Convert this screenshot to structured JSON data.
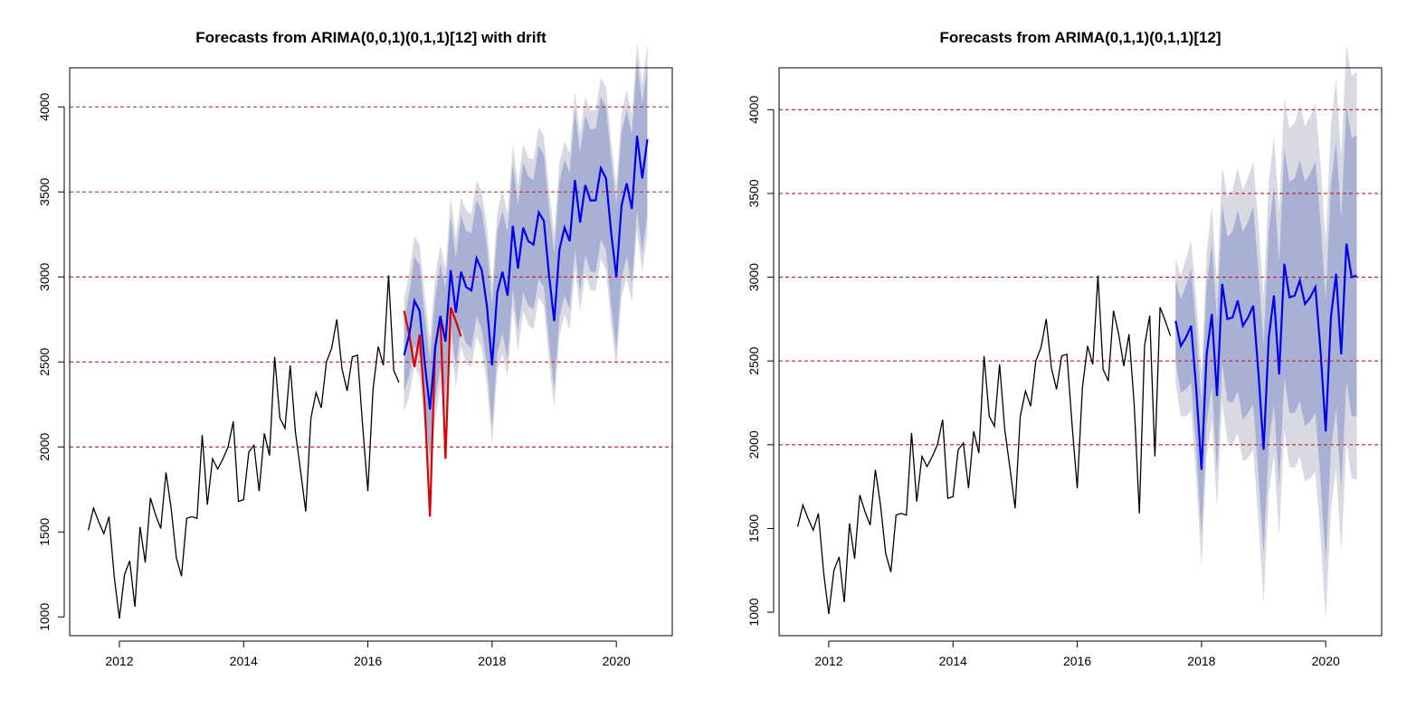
{
  "chart_data": [
    {
      "type": "line",
      "title": "Forecasts from ARIMA(0,0,1)(0,1,1)[12] with drift",
      "xlabel": "",
      "ylabel": "",
      "xlim": [
        2011.2,
        2020.9
      ],
      "ylim": [
        890,
        4230
      ],
      "x_ticks": [
        2012,
        2014,
        2016,
        2018,
        2020
      ],
      "y_ticks": [
        1000,
        1500,
        2000,
        2500,
        3000,
        3500,
        4000
      ],
      "reference_lines": [
        2000,
        2500,
        3000,
        3500,
        4000
      ],
      "grid": false,
      "colors": {
        "observed": "#000000",
        "forecast": "#0000ee",
        "actual": "#dd0000",
        "band80": "#a8b0d4",
        "band95": "#d8d9e2",
        "reference": "#b22222"
      },
      "observed": {
        "name": "observed",
        "x_start": 2011.5,
        "step": 0.08333,
        "values": [
          1510,
          1640,
          1560,
          1490,
          1590,
          1240,
          990,
          1250,
          1330,
          1060,
          1530,
          1320,
          1700,
          1600,
          1520,
          1850,
          1640,
          1350,
          1240,
          1580,
          1590,
          1580,
          2070,
          1660,
          1930,
          1870,
          1930,
          2000,
          2150,
          1680,
          1690,
          1970,
          2010,
          1740,
          2080,
          1950,
          2530,
          2170,
          2110,
          2480,
          2090,
          1860,
          1620,
          2170,
          2320,
          2230,
          2500,
          2580,
          2750,
          2460,
          2330,
          2530,
          2540,
          2120,
          1740,
          2340,
          2590,
          2480,
          3010,
          2450,
          2380
        ]
      },
      "actual": {
        "name": "actual",
        "x_start": 2016.583,
        "step": 0.08333,
        "values": [
          2800,
          2660,
          2470,
          2660,
          2240,
          1590,
          2590,
          2770,
          1930,
          2820,
          2740,
          2650
        ]
      },
      "forecast": {
        "name": "forecast",
        "x_start": 2016.583,
        "step": 0.08333,
        "values": [
          2540,
          2660,
          2860,
          2800,
          2490,
          2220,
          2580,
          2770,
          2620,
          3040,
          2790,
          3030,
          2940,
          2920,
          3110,
          3040,
          2830,
          2480,
          2910,
          3030,
          2890,
          3300,
          3050,
          3290,
          3210,
          3190,
          3380,
          3330,
          3010,
          2740,
          3160,
          3290,
          3210,
          3570,
          3320,
          3540,
          3450,
          3450,
          3640,
          3580,
          3260,
          3000,
          3420,
          3550,
          3400,
          3830,
          3580,
          3810
        ]
      },
      "hw80": [
        210,
        240,
        260,
        270,
        280,
        290,
        300,
        310,
        310,
        320,
        320,
        330,
        330,
        340,
        340,
        350,
        350,
        360,
        360,
        360,
        370,
        370,
        370,
        380,
        380,
        380,
        390,
        390,
        390,
        400,
        400,
        400,
        400,
        410,
        410,
        410,
        420,
        420,
        420,
        420,
        430,
        430,
        430,
        430,
        440,
        440,
        440,
        440
      ],
      "hw95": [
        330,
        360,
        380,
        390,
        400,
        410,
        420,
        420,
        430,
        430,
        440,
        440,
        450,
        450,
        460,
        460,
        470,
        470,
        470,
        480,
        480,
        480,
        490,
        490,
        490,
        500,
        500,
        500,
        510,
        510,
        510,
        510,
        520,
        520,
        520,
        520,
        530,
        530,
        530,
        540,
        540,
        540,
        540,
        550,
        550,
        550,
        550,
        560
      ]
    },
    {
      "type": "line",
      "title": "Forecasts from ARIMA(0,1,1)(0,1,1)[12]",
      "xlabel": "",
      "ylabel": "",
      "xlim": [
        2011.2,
        2020.9
      ],
      "ylim": [
        860,
        4250
      ],
      "x_ticks": [
        2012,
        2014,
        2016,
        2018,
        2020
      ],
      "y_ticks": [
        1000,
        1500,
        2000,
        2500,
        3000,
        3500,
        4000
      ],
      "reference_lines": [
        2000,
        2500,
        3000,
        3500,
        4000
      ],
      "grid": false,
      "colors": {
        "observed": "#000000",
        "forecast": "#0000ee",
        "band80": "#a8b0d4",
        "band95": "#d8d9e2",
        "reference": "#b22222"
      },
      "observed": {
        "name": "observed",
        "x_start": 2011.5,
        "step": 0.08333,
        "values": [
          1510,
          1640,
          1560,
          1490,
          1590,
          1240,
          990,
          1250,
          1330,
          1060,
          1530,
          1320,
          1700,
          1600,
          1520,
          1850,
          1640,
          1350,
          1240,
          1580,
          1590,
          1580,
          2070,
          1660,
          1930,
          1870,
          1930,
          2000,
          2150,
          1680,
          1690,
          1970,
          2010,
          1740,
          2080,
          1950,
          2530,
          2170,
          2110,
          2480,
          2090,
          1860,
          1620,
          2170,
          2320,
          2230,
          2500,
          2580,
          2750,
          2460,
          2330,
          2530,
          2540,
          2120,
          1740,
          2340,
          2590,
          2480,
          3010,
          2450,
          2380,
          2800,
          2660,
          2470,
          2660,
          2240,
          1590,
          2590,
          2770,
          1930,
          2820,
          2740,
          2650
        ]
      },
      "forecast": {
        "name": "forecast",
        "x_start": 2017.583,
        "step": 0.08333,
        "values": [
          2740,
          2590,
          2640,
          2710,
          2330,
          1850,
          2540,
          2780,
          2290,
          2960,
          2750,
          2760,
          2860,
          2710,
          2760,
          2830,
          2430,
          1970,
          2640,
          2890,
          2420,
          3080,
          2880,
          2890,
          2980,
          2840,
          2880,
          2940,
          2560,
          2080,
          2760,
          3020,
          2540,
          3200,
          3000,
          3010
        ]
      },
      "hw80": [
        240,
        280,
        310,
        340,
        360,
        390,
        410,
        430,
        450,
        470,
        490,
        510,
        540,
        560,
        570,
        590,
        610,
        620,
        640,
        650,
        670,
        680,
        690,
        700,
        720,
        730,
        740,
        750,
        770,
        780,
        790,
        800,
        810,
        820,
        830,
        840
      ],
      "hw95": [
        370,
        420,
        470,
        510,
        540,
        580,
        610,
        640,
        670,
        700,
        730,
        760,
        790,
        810,
        840,
        860,
        890,
        910,
        930,
        950,
        970,
        990,
        1010,
        1030,
        1050,
        1060,
        1080,
        1100,
        1110,
        1130,
        1150,
        1160,
        1180,
        1190,
        1200,
        1220
      ]
    }
  ]
}
